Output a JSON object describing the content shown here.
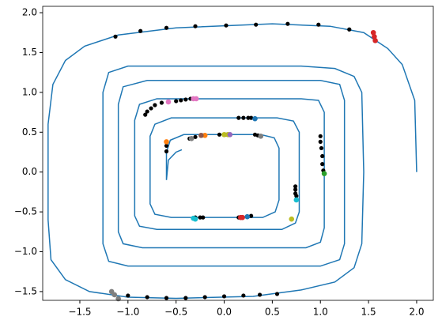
{
  "chart_data": {
    "type": "line-scatter",
    "xlim": [
      -1.886,
      2.173
    ],
    "ylim": [
      -1.61,
      2.08
    ],
    "xticks": [
      {
        "value": -1.5,
        "label": "−1.5"
      },
      {
        "value": -1.0,
        "label": "−1.0"
      },
      {
        "value": -0.5,
        "label": "−0.5"
      },
      {
        "value": 0.0,
        "label": "0.0"
      },
      {
        "value": 0.5,
        "label": "0.5"
      },
      {
        "value": 1.0,
        "label": "1.0"
      },
      {
        "value": 1.5,
        "label": "1.5"
      },
      {
        "value": 2.0,
        "label": "2.0"
      }
    ],
    "yticks": [
      {
        "value": -1.5,
        "label": "−1.5"
      },
      {
        "value": -1.0,
        "label": "−1.0"
      },
      {
        "value": -0.5,
        "label": "−0.5"
      },
      {
        "value": 0.0,
        "label": "0.0"
      },
      {
        "value": 0.5,
        "label": "0.5"
      },
      {
        "value": 1.0,
        "label": "1.0"
      },
      {
        "value": 1.5,
        "label": "1.5"
      },
      {
        "value": 2.0,
        "label": "2.0"
      }
    ],
    "grid": false,
    "series": [
      {
        "kind": "line",
        "color": "#1f77b4",
        "x": [
          2.0,
          1.98,
          1.85,
          1.7,
          1.45,
          1.1,
          0.5,
          -0.5,
          -1.1,
          -1.45,
          -1.65,
          -1.78,
          -1.83,
          -1.83,
          -1.8,
          -1.65,
          -1.4,
          -1.0,
          -0.5,
          0.3,
          0.8,
          1.15,
          1.35,
          1.43,
          1.45,
          1.43,
          1.35,
          1.15,
          0.8,
          -1.0,
          -1.2,
          -1.26,
          -1.26,
          -1.2,
          -1.0,
          1.0,
          1.2,
          1.25,
          1.25,
          1.2,
          1.0,
          -0.8,
          -1.05,
          -1.1,
          -1.1,
          -1.05,
          -0.85,
          0.85,
          1.0,
          1.04,
          1.04,
          0.98,
          0.8,
          -0.7,
          -0.88,
          -0.93,
          -0.93,
          -0.88,
          -0.7,
          0.6,
          0.74,
          0.78,
          0.78,
          0.72,
          0.55,
          -0.55,
          -0.72,
          -0.77,
          -0.77,
          -0.72,
          -0.55,
          0.4,
          0.53,
          0.57,
          0.57,
          0.52,
          0.38,
          -0.42,
          -0.56,
          -0.6,
          -0.6,
          -0.58,
          -0.5,
          -0.44
        ],
        "y": [
          0.0,
          0.9,
          1.35,
          1.55,
          1.75,
          1.83,
          1.86,
          1.81,
          1.72,
          1.58,
          1.4,
          1.1,
          0.6,
          -0.6,
          -1.1,
          -1.35,
          -1.5,
          -1.57,
          -1.585,
          -1.56,
          -1.48,
          -1.38,
          -1.2,
          -0.9,
          0.0,
          1.0,
          1.2,
          1.3,
          1.33,
          1.33,
          1.25,
          1.0,
          -0.9,
          -1.12,
          -1.18,
          -1.18,
          -1.1,
          -0.9,
          0.9,
          1.1,
          1.15,
          1.15,
          1.07,
          0.85,
          -0.75,
          -0.9,
          -0.95,
          -0.95,
          -0.88,
          -0.7,
          0.75,
          0.9,
          0.92,
          0.92,
          0.85,
          0.65,
          -0.55,
          -0.68,
          -0.72,
          -0.72,
          -0.64,
          -0.5,
          0.5,
          0.64,
          0.68,
          0.68,
          0.6,
          0.45,
          -0.4,
          -0.53,
          -0.57,
          -0.57,
          -0.5,
          -0.35,
          0.3,
          0.43,
          0.47,
          0.47,
          0.4,
          0.25,
          -0.1,
          0.15,
          0.25,
          0.28
        ]
      },
      {
        "kind": "scatter",
        "color": "#000000",
        "x": [
          -1.13,
          -0.87,
          -0.6,
          -0.3,
          0.02,
          0.33,
          0.66,
          0.98,
          1.3,
          -1.0,
          -0.8,
          -0.6,
          -0.4,
          -0.2,
          0.0,
          0.2,
          0.37,
          0.55,
          -0.82,
          -0.8,
          -0.76,
          -0.72,
          -0.65,
          -0.5,
          -0.45,
          -0.4,
          -0.35,
          1.0,
          1.0,
          1.01,
          1.02,
          1.02,
          1.03,
          0.15,
          0.2,
          0.25,
          0.28,
          -0.36,
          -0.3,
          -0.22,
          -0.05,
          0.02,
          0.32,
          0.35,
          -0.6,
          -0.6,
          0.74,
          0.74,
          0.74,
          0.75,
          -0.3,
          -0.25,
          -0.22,
          0.15,
          0.28
        ],
        "y": [
          1.7,
          1.77,
          1.81,
          1.83,
          1.84,
          1.85,
          1.86,
          1.85,
          1.79,
          -1.55,
          -1.57,
          -1.58,
          -1.58,
          -1.57,
          -1.56,
          -1.55,
          -1.54,
          -1.53,
          0.72,
          0.76,
          0.8,
          0.84,
          0.87,
          0.89,
          0.9,
          0.91,
          0.92,
          0.45,
          0.38,
          0.3,
          0.2,
          0.1,
          0.02,
          0.68,
          0.68,
          0.68,
          0.68,
          0.42,
          0.44,
          0.46,
          0.47,
          0.47,
          0.47,
          0.46,
          0.33,
          0.26,
          -0.18,
          -0.22,
          -0.27,
          -0.3,
          -0.57,
          -0.57,
          -0.57,
          -0.57,
          -0.55
        ]
      },
      {
        "kind": "scatter",
        "color": "#d62728",
        "x": [
          1.55,
          1.56,
          1.57,
          0.17,
          0.19
        ],
        "y": [
          1.75,
          1.7,
          1.65,
          -0.57,
          -0.57
        ]
      },
      {
        "kind": "scatter",
        "color": "#7f7f7f",
        "x": [
          -1.17,
          -1.14,
          -1.1,
          -0.34,
          0.38
        ],
        "y": [
          -1.5,
          -1.54,
          -1.59,
          0.42,
          0.45
        ]
      },
      {
        "kind": "scatter",
        "color": "#e377c2",
        "x": [
          -0.58,
          -0.32,
          -0.29
        ],
        "y": [
          0.88,
          0.92,
          0.92
        ]
      },
      {
        "kind": "scatter",
        "color": "#2ca02c",
        "x": [
          1.04
        ],
        "y": [
          -0.02
        ]
      },
      {
        "kind": "scatter",
        "color": "#1f77b4",
        "x": [
          0.32,
          0.24
        ],
        "y": [
          0.67,
          -0.56
        ]
      },
      {
        "kind": "scatter",
        "color": "#ff7f0e",
        "x": [
          -0.2,
          -0.6
        ],
        "y": [
          0.46,
          0.38
        ]
      },
      {
        "kind": "scatter",
        "color": "#bcbd22",
        "x": [
          0.0,
          0.04,
          0.7
        ],
        "y": [
          0.47,
          0.47,
          -0.59
        ]
      },
      {
        "kind": "scatter",
        "color": "#9467bd",
        "x": [
          0.06
        ],
        "y": [
          0.47
        ]
      },
      {
        "kind": "scatter",
        "color": "#8c564b",
        "x": [
          -0.24
        ],
        "y": [
          0.46
        ]
      },
      {
        "kind": "scatter",
        "color": "#17becf",
        "x": [
          0.75,
          -0.32,
          -0.3
        ],
        "y": [
          -0.35,
          -0.58,
          -0.59
        ]
      }
    ]
  }
}
